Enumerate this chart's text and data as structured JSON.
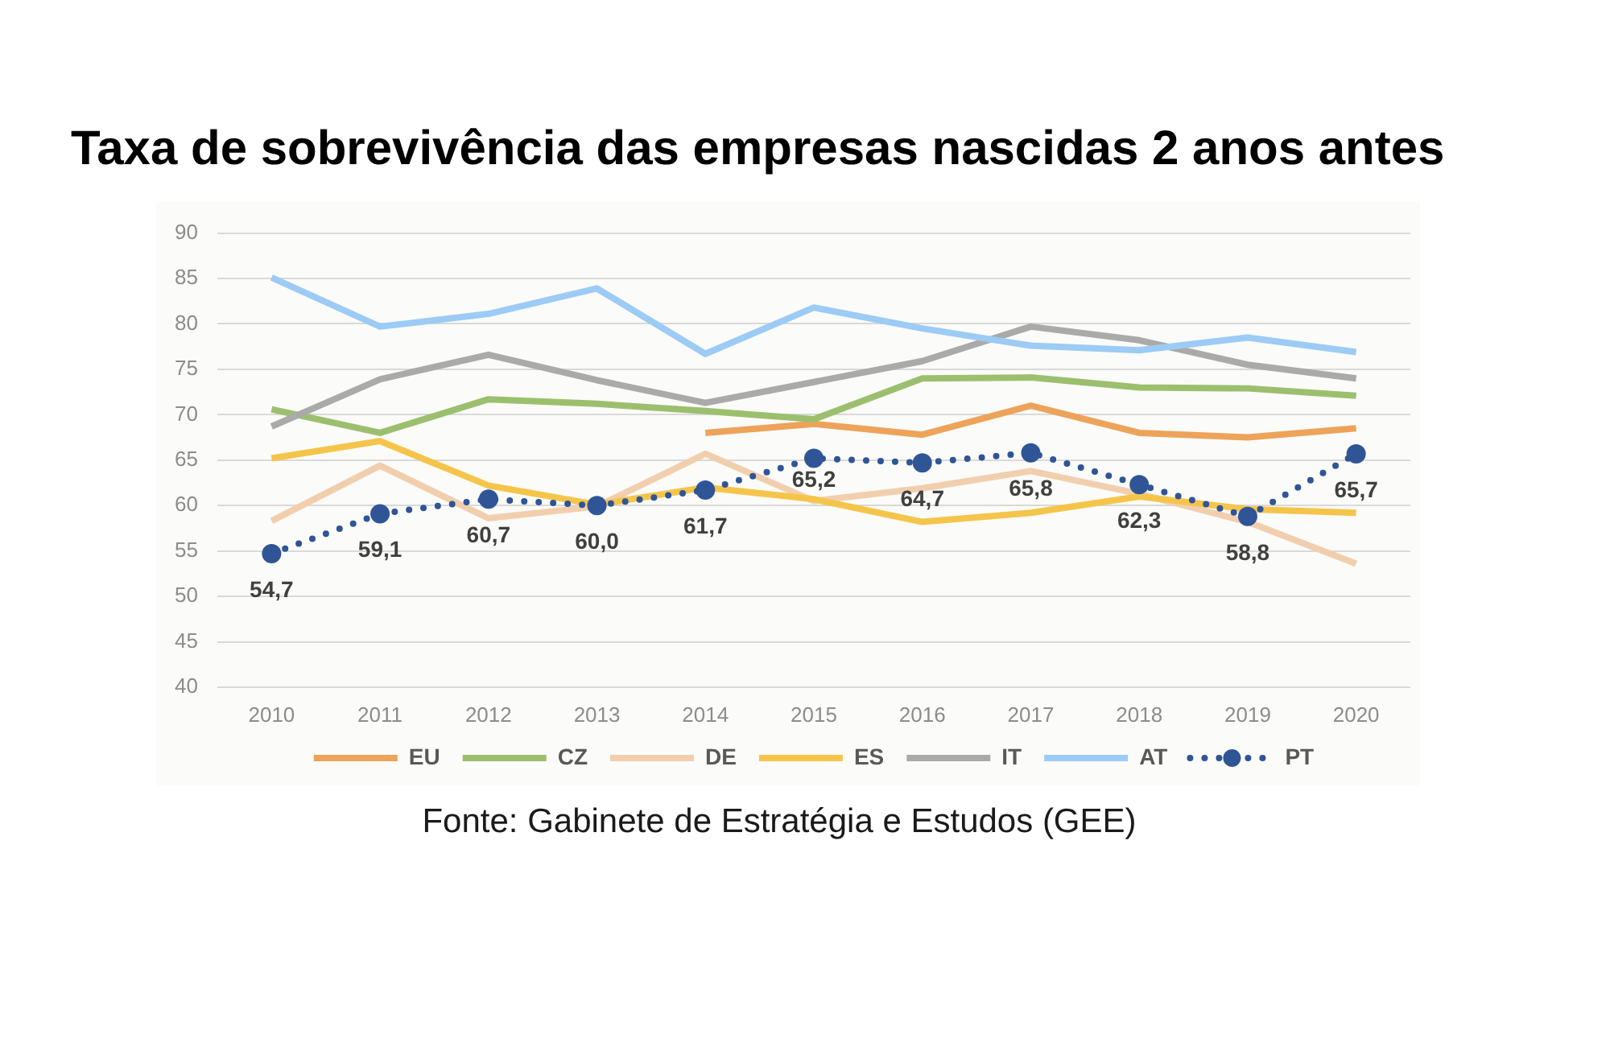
{
  "chart_data": {
    "type": "line",
    "title": "Taxa de sobrevivência das empresas nascidas 2 anos antes",
    "categories": [
      "2010",
      "2011",
      "2012",
      "2013",
      "2014",
      "2015",
      "2016",
      "2017",
      "2018",
      "2019",
      "2020"
    ],
    "series": [
      {
        "name": "EU",
        "color": "#eda35a",
        "values": [
          null,
          null,
          null,
          null,
          68.0,
          69.0,
          67.8,
          71.0,
          68.0,
          67.5,
          68.5
        ]
      },
      {
        "name": "CZ",
        "color": "#9cbf6e",
        "values": [
          70.6,
          68.0,
          71.7,
          71.2,
          70.4,
          69.5,
          74.0,
          74.1,
          73.0,
          72.9,
          72.1
        ]
      },
      {
        "name": "DE",
        "color": "#f1cfae",
        "values": [
          58.3,
          64.4,
          58.6,
          59.9,
          65.7,
          60.5,
          61.9,
          63.8,
          61.3,
          58.2,
          53.6
        ]
      },
      {
        "name": "ES",
        "color": "#f5c54b",
        "values": [
          65.2,
          67.1,
          62.2,
          60.1,
          62.0,
          60.7,
          58.2,
          59.2,
          61.0,
          59.6,
          59.2
        ]
      },
      {
        "name": "IT",
        "color": "#aaaaaa",
        "values": [
          68.7,
          73.9,
          76.6,
          73.8,
          71.3,
          73.6,
          75.9,
          79.7,
          78.2,
          75.5,
          74.0
        ]
      },
      {
        "name": "AT",
        "color": "#9ccbf5",
        "values": [
          85.1,
          79.7,
          81.1,
          83.9,
          76.7,
          81.8,
          79.5,
          77.6,
          77.1,
          78.5,
          76.9
        ]
      },
      {
        "name": "PT",
        "color": "#2f5597",
        "line_style": "dotted",
        "marker": "circle",
        "values": [
          54.7,
          59.1,
          60.7,
          60.0,
          61.7,
          65.2,
          64.7,
          65.8,
          62.3,
          58.8,
          65.7
        ],
        "value_labels": [
          "54,7",
          "59,1",
          "60,7",
          "60,0",
          "61,7",
          "65,2",
          "64,7",
          "65,8",
          "62,3",
          "58,8",
          "65,7"
        ]
      }
    ],
    "ylim": [
      40,
      90
    ],
    "yticks": [
      40,
      45,
      50,
      55,
      60,
      65,
      70,
      75,
      80,
      85,
      90
    ],
    "grid": "y",
    "legend": "bottom",
    "annotations": [
      "Fonte: Gabinete de Estratégia e Estudos (GEE)"
    ]
  }
}
